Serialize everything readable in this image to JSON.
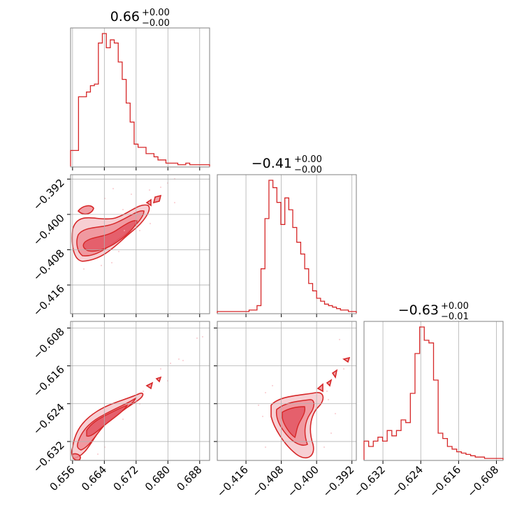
{
  "params": [
    {
      "title_value": "0.66",
      "err_plus": "+0.00",
      "err_minus": "−0.00"
    },
    {
      "title_value": "−0.41",
      "err_plus": "+0.00",
      "err_minus": "−0.00"
    },
    {
      "title_value": "−0.63",
      "err_plus": "+0.00",
      "err_minus": "−0.01"
    }
  ],
  "tick_labels": {
    "p0": [
      "0.656",
      "0.664",
      "0.672",
      "0.680",
      "0.688"
    ],
    "p1": [
      "−0.416",
      "−0.408",
      "−0.400",
      "−0.392"
    ],
    "p2": [
      "−0.632",
      "−0.624",
      "−0.616",
      "−0.608"
    ]
  },
  "chart_data": {
    "type": "corner",
    "color": "#d62728",
    "parameters": [
      {
        "title": "0.66 +0.00 −0.00",
        "median": 0.664,
        "range": [
          0.6555,
          0.6905
        ],
        "ticks": [
          0.656,
          0.664,
          0.672,
          0.68,
          0.688
        ]
      },
      {
        "title": "−0.41 +0.00 −0.00",
        "median": -0.407,
        "range": [
          -0.4225,
          -0.391
        ],
        "ticks": [
          -0.416,
          -0.408,
          -0.4,
          -0.392
        ]
      },
      {
        "title": "−0.63 +0.00 −0.01",
        "median": -0.627,
        "range": [
          -0.636,
          -0.6066
        ],
        "ticks": [
          -0.632,
          -0.624,
          -0.616,
          -0.608
        ]
      }
    ],
    "histograms": [
      {
        "param": 0,
        "bin_edges_range": [
          0.6555,
          0.6905
        ],
        "counts": [
          0.1,
          0.1,
          0.44,
          0.44,
          0.47,
          0.51,
          0.52,
          0.78,
          0.84,
          0.75,
          0.8,
          0.78,
          0.66,
          0.55,
          0.4,
          0.28,
          0.14,
          0.12,
          0.12,
          0.08,
          0.08,
          0.06,
          0.04,
          0.04,
          0.02,
          0.02,
          0.02,
          0.01,
          0.01,
          0.02,
          0.01,
          0.01,
          0.01,
          0.01,
          0.01
        ]
      },
      {
        "param": 1,
        "bin_edges_range": [
          -0.4225,
          -0.391
        ],
        "counts": [
          0.01,
          0.01,
          0.01,
          0.01,
          0.01,
          0.01,
          0.01,
          0.01,
          0.02,
          0.02,
          0.05,
          0.3,
          0.64,
          0.9,
          0.85,
          0.75,
          0.6,
          0.78,
          0.7,
          0.58,
          0.48,
          0.4,
          0.3,
          0.2,
          0.15,
          0.1,
          0.08,
          0.06,
          0.05,
          0.04,
          0.03,
          0.02,
          0.02,
          0.01,
          0.01
        ]
      },
      {
        "param": 2,
        "bin_edges_range": [
          -0.636,
          -0.6066
        ],
        "counts": [
          0.14,
          0.1,
          0.14,
          0.17,
          0.14,
          0.22,
          0.18,
          0.22,
          0.3,
          0.28,
          0.5,
          0.8,
          1.0,
          0.9,
          0.88,
          0.6,
          0.2,
          0.16,
          0.1,
          0.08,
          0.06,
          0.05,
          0.04,
          0.03,
          0.02,
          0.02,
          0.01,
          0.01,
          0.01,
          0.01
        ]
      }
    ],
    "correlations": [
      {
        "x_param": 0,
        "y_param": 1,
        "trend": "positive",
        "note": "2D density contours"
      },
      {
        "x_param": 0,
        "y_param": 2,
        "trend": "positive"
      },
      {
        "x_param": 1,
        "y_param": 2,
        "trend": "positive"
      }
    ],
    "grid": true,
    "xlabel": "",
    "ylabel": ""
  }
}
